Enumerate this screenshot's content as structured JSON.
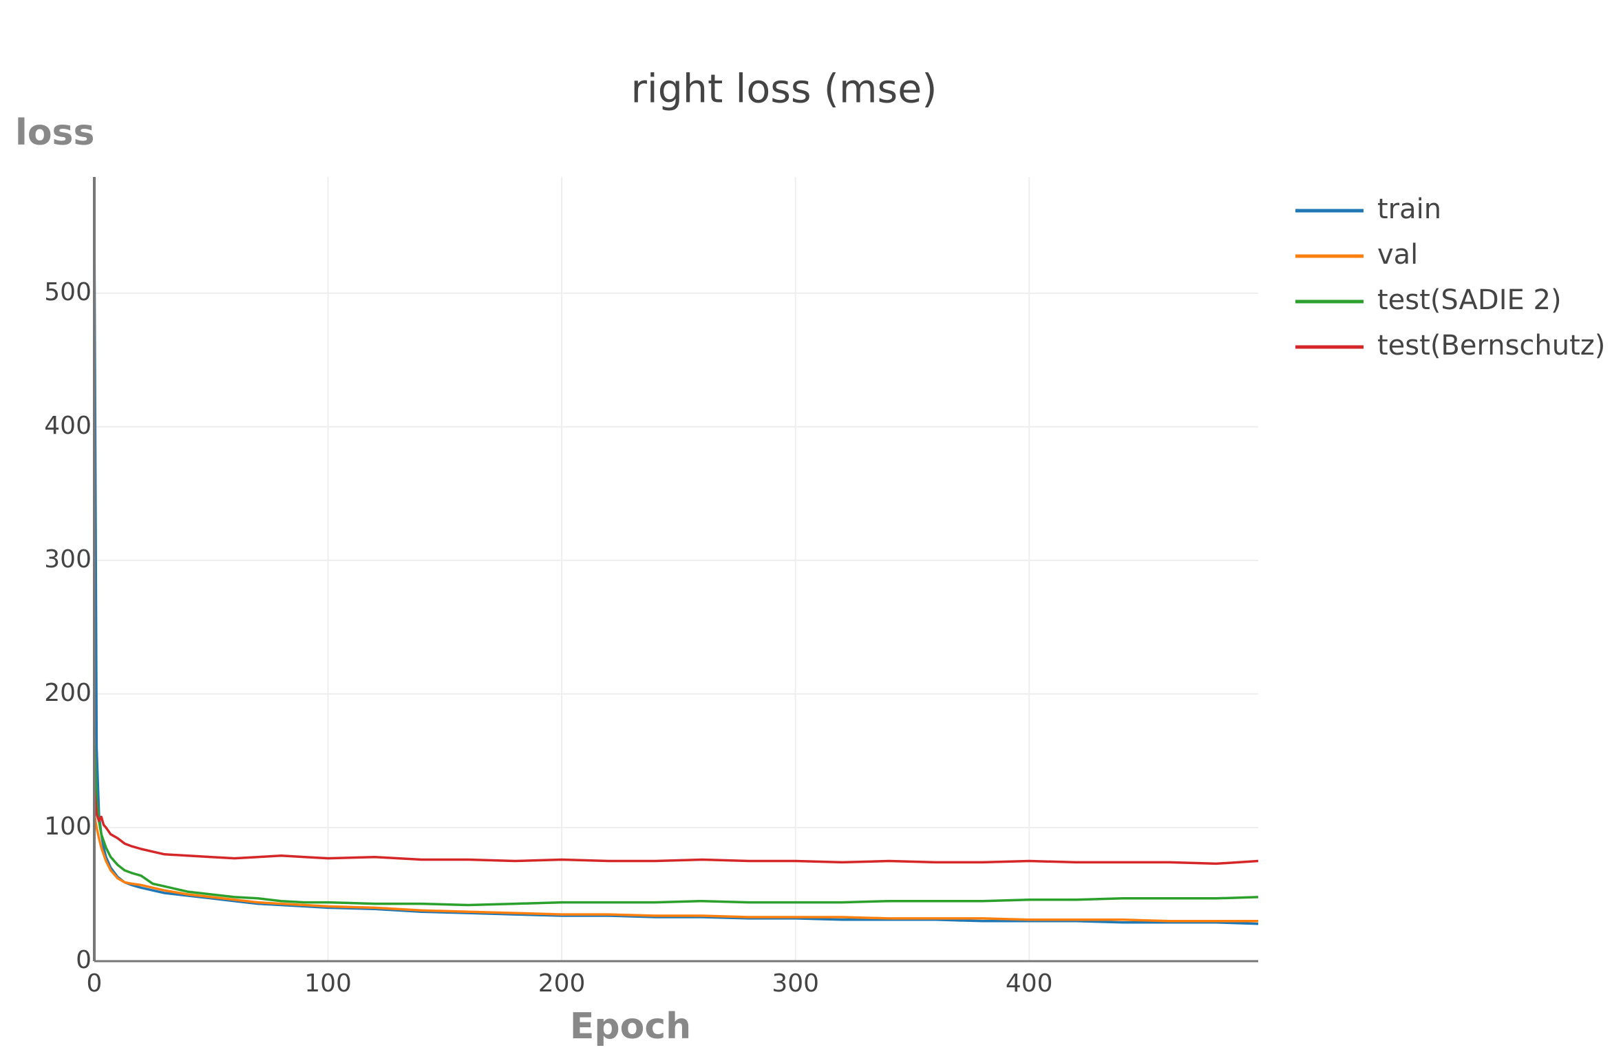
{
  "chart_data": {
    "type": "line",
    "title": "right loss (mse)",
    "x_label": "Epoch",
    "y_label": "loss",
    "x": [
      0,
      1,
      2,
      3,
      4,
      5,
      7,
      10,
      13,
      16,
      20,
      25,
      30,
      40,
      50,
      60,
      70,
      80,
      90,
      100,
      120,
      140,
      160,
      180,
      200,
      220,
      240,
      260,
      280,
      300,
      320,
      340,
      360,
      380,
      400,
      420,
      440,
      460,
      480,
      498
    ],
    "series": [
      {
        "name": "train",
        "color": "#1f77b4",
        "values": [
          558,
          160,
          110,
          95,
          85,
          78,
          70,
          63,
          59,
          57,
          55,
          53,
          51,
          49,
          47,
          45,
          43,
          42,
          41,
          40,
          39,
          37,
          36,
          35,
          34,
          34,
          33,
          33,
          32,
          32,
          31,
          31,
          31,
          30,
          30,
          30,
          29,
          29,
          29,
          28
        ]
      },
      {
        "name": "val",
        "color": "#ff7f0e",
        "values": [
          110,
          100,
          92,
          85,
          80,
          75,
          68,
          62,
          59,
          58,
          57,
          55,
          53,
          50,
          48,
          46,
          44,
          43,
          42,
          41,
          40,
          38,
          37,
          36,
          35,
          35,
          34,
          34,
          33,
          33,
          33,
          32,
          32,
          32,
          31,
          31,
          31,
          30,
          30,
          30
        ]
      },
      {
        "name": "test(SADIE 2)",
        "color": "#2ca02c",
        "values": [
          170,
          120,
          105,
          95,
          90,
          85,
          78,
          72,
          68,
          66,
          64,
          58,
          56,
          52,
          50,
          48,
          47,
          45,
          44,
          44,
          43,
          43,
          42,
          43,
          44,
          44,
          44,
          45,
          44,
          44,
          44,
          45,
          45,
          45,
          46,
          46,
          47,
          47,
          47,
          48
        ]
      },
      {
        "name": "test(Bernschutz)",
        "color": "#d62728",
        "values": [
          130,
          110,
          105,
          108,
          102,
          100,
          95,
          92,
          88,
          86,
          84,
          82,
          80,
          79,
          78,
          77,
          78,
          79,
          78,
          77,
          78,
          76,
          76,
          75,
          76,
          75,
          75,
          76,
          75,
          75,
          74,
          75,
          74,
          74,
          75,
          74,
          74,
          74,
          73,
          75
        ]
      }
    ],
    "xlim": [
      0,
      498
    ],
    "ylim": [
      0,
      587
    ],
    "xticks": [
      0,
      100,
      200,
      300,
      400
    ],
    "yticks": [
      0,
      100,
      200,
      300,
      400,
      500
    ],
    "grid": true
  }
}
